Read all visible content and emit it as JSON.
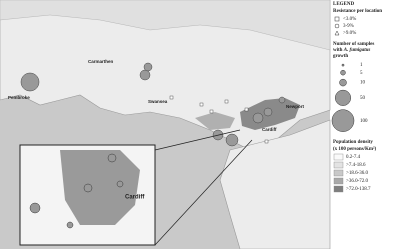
{
  "legend": {
    "title": "LEGEND",
    "resistance": {
      "heading": "Resistance per location",
      "items": [
        "<3.0%",
        "3-9%",
        ">9.0%"
      ]
    },
    "samples": {
      "line1": "Number of samples",
      "prefix": "with",
      "species": "A. fumigatus",
      "suffix": "growth",
      "sizes": [
        1,
        5,
        10,
        50,
        100
      ]
    },
    "density": {
      "heading": "Population density",
      "unit": "(x 100 persons/Km²)",
      "items": [
        "0.2-7.4",
        ">7.4-18.6",
        ">18.6-36.0",
        ">36.0-72.0",
        ">72.0-138.7"
      ]
    }
  },
  "places": {
    "carmarthen": "Carmarthen",
    "pembroke": "Pembroke",
    "swansea": "Swansea",
    "newport": "Newport",
    "cardiff": "Cardiff",
    "inset_cardiff": "Cardiff"
  }
}
